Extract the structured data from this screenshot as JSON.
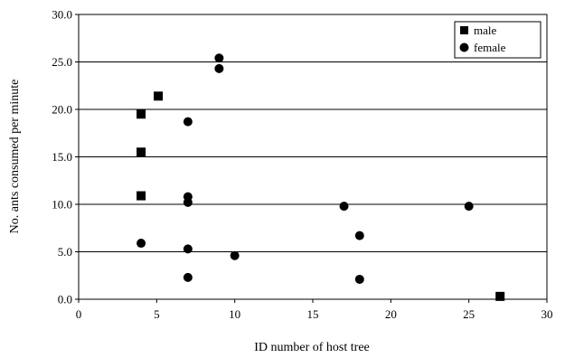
{
  "chart_data": {
    "type": "scatter",
    "xlabel": "ID number of host tree",
    "ylabel": "No. ants consumed per minute",
    "xlim": [
      0,
      30
    ],
    "ylim": [
      0,
      30
    ],
    "x_ticks": [
      "0",
      "5",
      "10",
      "15",
      "20",
      "25",
      "30"
    ],
    "y_ticks": [
      "0.0",
      "5.0",
      "10.0",
      "15.0",
      "20.0",
      "25.0",
      "30.0"
    ],
    "grid": "horizontal",
    "legend_position": "top-right",
    "series": [
      {
        "name": "male",
        "marker": "square",
        "points": [
          {
            "x": 4,
            "y": 19.5
          },
          {
            "x": 4,
            "y": 15.5
          },
          {
            "x": 4,
            "y": 10.9
          },
          {
            "x": 5.1,
            "y": 21.4
          },
          {
            "x": 27,
            "y": 0.3
          }
        ]
      },
      {
        "name": "female",
        "marker": "circle",
        "points": [
          {
            "x": 4,
            "y": 5.9
          },
          {
            "x": 7,
            "y": 18.7
          },
          {
            "x": 7,
            "y": 10.8
          },
          {
            "x": 7,
            "y": 10.2
          },
          {
            "x": 7,
            "y": 5.3
          },
          {
            "x": 7,
            "y": 2.3
          },
          {
            "x": 9,
            "y": 25.4
          },
          {
            "x": 9,
            "y": 24.3
          },
          {
            "x": 10,
            "y": 4.6
          },
          {
            "x": 17,
            "y": 9.8
          },
          {
            "x": 18,
            "y": 6.7
          },
          {
            "x": 18,
            "y": 2.1
          },
          {
            "x": 25,
            "y": 9.8
          }
        ]
      }
    ]
  }
}
